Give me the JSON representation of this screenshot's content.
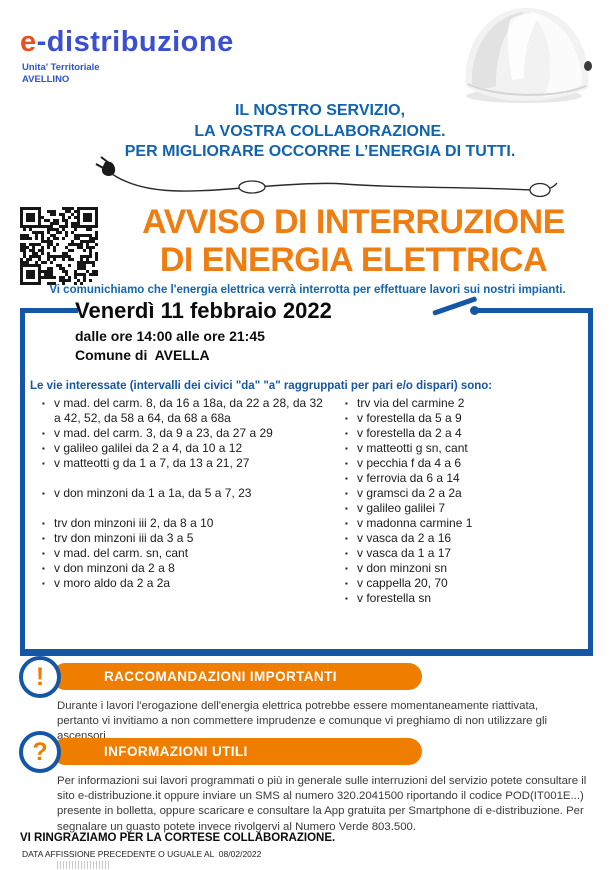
{
  "logo": {
    "e": "e",
    "rest": "-distribuzione",
    "unit_line1": "Unita' Territoriale",
    "unit_line2": "AVELLINO"
  },
  "headline": {
    "line1": "IL NOSTRO SERVIZIO,",
    "line2": "LA VOSTRA COLLABORAZIONE.",
    "line3": "PER MIGLIORARE OCCORRE L’ENERGIA DI TUTTI."
  },
  "title": {
    "line1": "AVVISO DI INTERRUZIONE",
    "line2": "DI ENERGIA ELETTRICA"
  },
  "intro": "Vi comunichiamo che l'energia elettrica verrà interrotta per effettuare lavori sui nostri impianti.",
  "notice": {
    "date": "Venerdì 11 febbraio 2022",
    "time": "dalle ore 14:00 alle ore 21:45",
    "comune": "Comune di  AVELLA"
  },
  "streets": {
    "intro": "Le vie interessate (intervalli dei civici \"da\" \"a\" raggruppati per pari e/o dispari) sono:",
    "bullet": "▪",
    "left": [
      {
        "text": "v mad. del carm. 8, da 16 a 18a, da 22 a 28, da 32 a 42, 52, da 58 a 64, da 68 a 68a",
        "gap_before": false
      },
      {
        "text": "v mad. del carm. 3, da 9 a 23, da 27 a 29",
        "gap_before": false
      },
      {
        "text": "v galileo galilei da 2 a 4, da 10 a 12",
        "gap_before": false
      },
      {
        "text": "v matteotti g da 1 a 7, da 13 a 21, 27",
        "gap_before": false
      },
      {
        "text": "v don minzoni da 1 a 1a, da 5 a 7, 23",
        "gap_before": true
      },
      {
        "text": "trv don minzoni iii 2, da 8 a 10",
        "gap_before": true
      },
      {
        "text": "trv don minzoni iii da 3 a 5",
        "gap_before": false
      },
      {
        "text": "v mad. del carm. sn, cant",
        "gap_before": false
      },
      {
        "text": "v don minzoni da 2 a 8",
        "gap_before": false
      },
      {
        "text": "v moro aldo da 2 a 2a",
        "gap_before": false
      }
    ],
    "right": [
      {
        "text": "trv via del carmine 2",
        "gap_before": false
      },
      {
        "text": "v forestella da 5 a 9",
        "gap_before": false
      },
      {
        "text": "v forestella da 2 a 4",
        "gap_before": false
      },
      {
        "text": "v matteotti g sn, cant",
        "gap_before": false
      },
      {
        "text": "v pecchia f da 4 a 6",
        "gap_before": false
      },
      {
        "text": "v ferrovia da 6 a 14",
        "gap_before": false
      },
      {
        "text": "v gramsci da 2 a 2a",
        "gap_before": false
      },
      {
        "text": "v galileo galilei 7",
        "gap_before": false
      },
      {
        "text": "v madonna carmine 1",
        "gap_before": false
      },
      {
        "text": "v vasca da 2 a 16",
        "gap_before": false
      },
      {
        "text": "v vasca da 1 a 17",
        "gap_before": false
      },
      {
        "text": "v don minzoni sn",
        "gap_before": false
      },
      {
        "text": "v cappella 20, 70",
        "gap_before": false
      },
      {
        "text": "v forestella sn",
        "gap_before": false
      }
    ]
  },
  "sections": [
    {
      "icon": "exclamation-icon",
      "glyph": "!",
      "title": "RACCOMANDAZIONI IMPORTANTI",
      "body": "Durante i lavori l'erogazione dell'energia elettrica potrebbe essere momentaneamente riattivata, pertanto vi invitiamo a non commettere imprudenze e comunque vi preghiamo di non utilizzare gli ascensori."
    },
    {
      "icon": "question-icon",
      "glyph": "?",
      "title": "INFORMAZIONI UTILI",
      "body": "Per informazioni sui lavori programmati o più in generale sulle interruzioni del servizio potete consultare il sito e-distribuzione.it oppure inviare un SMS al numero 320.2041500 riportando il codice POD(IT001E...) presente in bolletta, oppure scaricare e consultare la App gratuita per Smartphone di e-distribuzione. Per segnalare un guasto potete invece rivolgervi al Numero Verde 803.500."
    }
  ],
  "footer": {
    "thanks": "VI RINGRAZIAMO PER LA CORTESE COLLABORAZIONE.",
    "affissione": "DATA AFFISSIONE PRECEDENTE O UGUALE AL  08/02/2022"
  },
  "colors": {
    "orange": "#EF7D00",
    "title_orange": "#EE7D12",
    "box_blue": "#1457A6",
    "headline_blue": "#1063AE",
    "logo_blue": "#3B50CE",
    "logo_orange": "#E8501E"
  }
}
